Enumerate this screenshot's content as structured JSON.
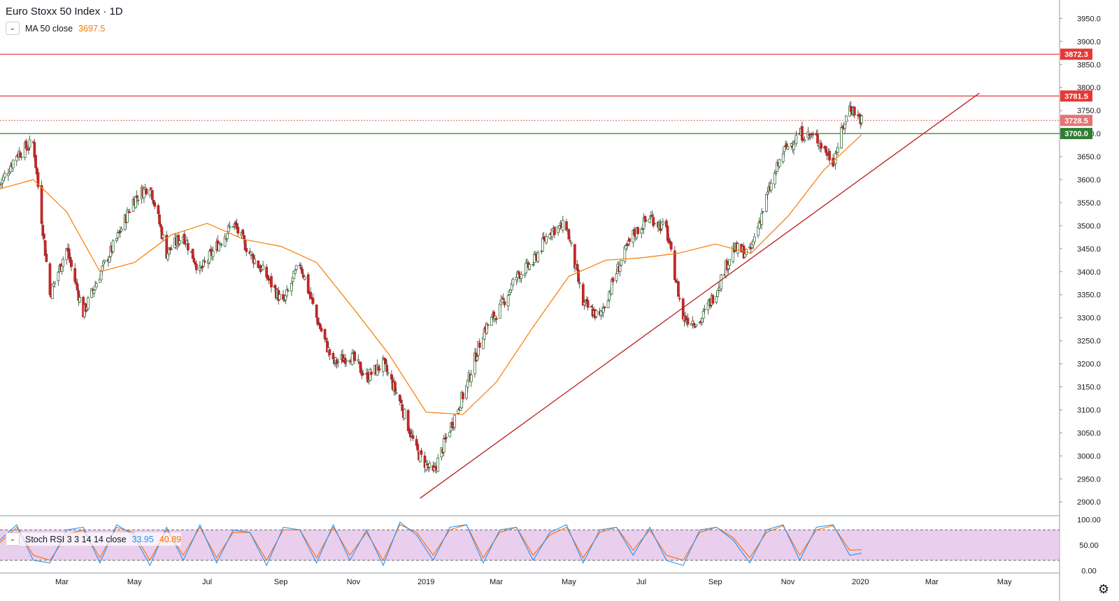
{
  "symbol": {
    "name": "Euro Stoxx 50 Index",
    "interval": "1D",
    "separator": "·"
  },
  "ma": {
    "label": "MA 50 close",
    "value": "3697.5",
    "color": "#f57c00"
  },
  "stoch": {
    "label": "Stoch RSI 3 3 14 14 close",
    "k_value": "33.95",
    "d_value": "40.89",
    "k_color": "#2196f3",
    "d_color": "#ff6d00"
  },
  "colors": {
    "up": "#26a69a",
    "down": "#ef5350",
    "resistance": "#e53935",
    "support": "#2e7d32",
    "trendline": "#b71c1c",
    "band_fill": "#e1bee7"
  },
  "chart_data": [
    {
      "type": "line",
      "title": "",
      "xlabel": "",
      "ylabel": "",
      "ylim": [
        2870,
        3990
      ],
      "y_ticks": [
        "3950.0",
        "3900.0",
        "3850.0",
        "3800.0",
        "3750.0",
        "3700.0",
        "3650.0",
        "3600.0",
        "3550.0",
        "3500.0",
        "3450.0",
        "3400.0",
        "3350.0",
        "3300.0",
        "3250.0",
        "3200.0",
        "3150.0",
        "3100.0",
        "3050.0",
        "3000.0",
        "2950.0",
        "2900.0"
      ],
      "x_ticks": [
        "Mar",
        "May",
        "Jul",
        "Sep",
        "Nov",
        "2019",
        "Mar",
        "May",
        "Jul",
        "Sep",
        "Nov",
        "2020",
        "Mar",
        "May"
      ],
      "series": [
        {
          "x": [
            "2018-01-08",
            "2018-01-22",
            "2018-02-05",
            "2018-02-19",
            "2018-03-05",
            "2018-03-19",
            "2018-04-02",
            "2018-04-16",
            "2018-04-30",
            "2018-05-14",
            "2018-05-28",
            "2018-06-11",
            "2018-06-25",
            "2018-07-09",
            "2018-07-23",
            "2018-08-06",
            "2018-08-20",
            "2018-09-03",
            "2018-09-17",
            "2018-10-01",
            "2018-10-15",
            "2018-10-29",
            "2018-11-12",
            "2018-11-26",
            "2018-12-10",
            "2018-12-24",
            "2019-01-07",
            "2019-01-21",
            "2019-02-04",
            "2019-02-18",
            "2019-03-04",
            "2019-03-18",
            "2019-04-01",
            "2019-04-15",
            "2019-04-29",
            "2019-05-13",
            "2019-05-27",
            "2019-06-10",
            "2019-06-24",
            "2019-07-08",
            "2019-07-22",
            "2019-08-05",
            "2019-08-19",
            "2019-09-02",
            "2019-09-16",
            "2019-09-30",
            "2019-10-14",
            "2019-10-28",
            "2019-11-11",
            "2019-11-25",
            "2019-12-09",
            "2019-12-23",
            "2020-01-02"
          ],
          "values": [
            3590,
            3655,
            3680,
            3350,
            3450,
            3310,
            3395,
            3470,
            3555,
            3590,
            3440,
            3480,
            3400,
            3455,
            3505,
            3440,
            3390,
            3330,
            3420,
            3300,
            3200,
            3220,
            3170,
            3200,
            3120,
            3010,
            2960,
            3060,
            3150,
            3270,
            3320,
            3390,
            3420,
            3490,
            3500,
            3330,
            3300,
            3400,
            3480,
            3520,
            3490,
            3300,
            3290,
            3360,
            3450,
            3440,
            3560,
            3660,
            3700,
            3690,
            3640,
            3760,
            3728.5
          ]
        },
        {
          "name": "MA 50 close",
          "x": [
            "2018-01-08",
            "2018-02-05",
            "2018-03-05",
            "2018-04-02",
            "2018-05-01",
            "2018-06-01",
            "2018-07-01",
            "2018-08-01",
            "2018-09-01",
            "2018-10-01",
            "2018-11-01",
            "2018-12-01",
            "2019-01-01",
            "2019-02-01",
            "2019-03-01",
            "2019-04-01",
            "2019-05-01",
            "2019-06-01",
            "2019-07-01",
            "2019-08-01",
            "2019-09-01",
            "2019-10-01",
            "2019-11-01",
            "2019-12-01",
            "2020-01-02"
          ],
          "values": [
            3580,
            3600,
            3530,
            3400,
            3420,
            3480,
            3505,
            3470,
            3455,
            3420,
            3320,
            3220,
            3095,
            3090,
            3160,
            3280,
            3390,
            3425,
            3430,
            3440,
            3460,
            3440,
            3520,
            3620,
            3697.5
          ]
        }
      ],
      "horizontal_levels": [
        {
          "label": "3872.3",
          "value": 3872.3,
          "style": "solid",
          "color": "#e53935"
        },
        {
          "label": "3781.5",
          "value": 3781.5,
          "style": "solid",
          "color": "#e53935"
        },
        {
          "label": "3728.5",
          "value": 3728.5,
          "style": "dotted",
          "color": "#e57373"
        },
        {
          "label": "3700.0",
          "value": 3700.0,
          "style": "solid",
          "color": "#2e7d32"
        }
      ],
      "trendline": {
        "from": {
          "x": "2018-12-27",
          "y": 2908
        },
        "to": {
          "x": "2020-04-10",
          "y": 3788
        }
      }
    },
    {
      "type": "line",
      "title": "",
      "ylim": [
        -5,
        105
      ],
      "y_ticks": [
        "100.00",
        "50.00",
        "0.00"
      ],
      "band": [
        20,
        80
      ],
      "series": [
        {
          "name": "K",
          "values": [
            60,
            90,
            20,
            15,
            80,
            85,
            15,
            90,
            70,
            10,
            85,
            20,
            90,
            15,
            80,
            75,
            10,
            85,
            80,
            15,
            90,
            20,
            80,
            10,
            95,
            70,
            20,
            85,
            90,
            15,
            80,
            85,
            20,
            75,
            90,
            15,
            80,
            85,
            30,
            85,
            20,
            10,
            80,
            85,
            60,
            15,
            80,
            90,
            20,
            85,
            90,
            30,
            33.95
          ]
        },
        {
          "name": "D",
          "values": [
            55,
            85,
            30,
            20,
            70,
            80,
            25,
            85,
            75,
            20,
            80,
            30,
            85,
            25,
            75,
            75,
            20,
            80,
            80,
            25,
            85,
            30,
            75,
            20,
            90,
            75,
            30,
            80,
            90,
            25,
            75,
            85,
            30,
            70,
            85,
            25,
            75,
            85,
            40,
            80,
            30,
            20,
            75,
            85,
            65,
            25,
            75,
            88,
            30,
            80,
            88,
            40,
            40.89
          ]
        }
      ]
    }
  ]
}
